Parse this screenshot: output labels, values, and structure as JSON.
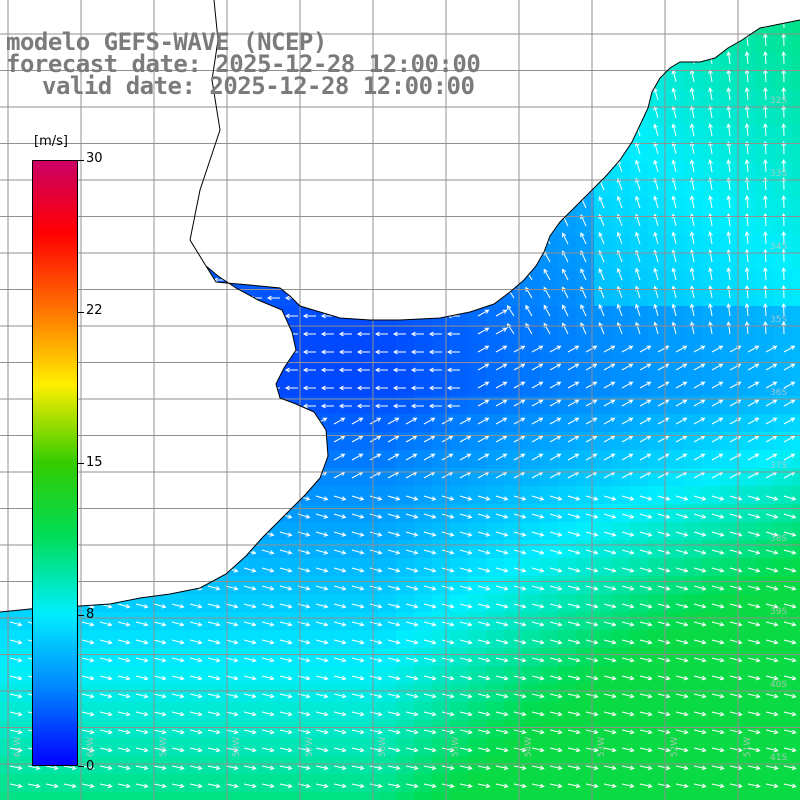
{
  "header": {
    "model_line": "modelo GEFS-WAVE (NCEP)",
    "forecast_line": "forecast date: 2025-12-28 12:00:00",
    "valid_line": "valid date: 2025-12-28 12:00:00"
  },
  "colorbar": {
    "unit": "[m/s]",
    "ticks": [
      "30",
      "22",
      "15",
      "8",
      "0"
    ],
    "colors": [
      "#0000ff",
      "#0088ff",
      "#00eeff",
      "#00dd55",
      "#33cc00",
      "#ffee00",
      "#ff7700",
      "#ff0000",
      "#cc0066"
    ]
  },
  "grid": {
    "lon_labels": [
      "61W",
      "60W",
      "59W",
      "58W",
      "57W",
      "56W",
      "55W",
      "54W",
      "53W",
      "52W",
      "51W"
    ],
    "lat_labels": [
      "32S",
      "33S",
      "34S",
      "35S",
      "36S",
      "37S",
      "38S",
      "39S",
      "40S",
      "41S"
    ]
  },
  "colors": {
    "land": "#ffffff",
    "grid": "#909090",
    "coast": "#000000",
    "title": "#7b7b7b"
  }
}
